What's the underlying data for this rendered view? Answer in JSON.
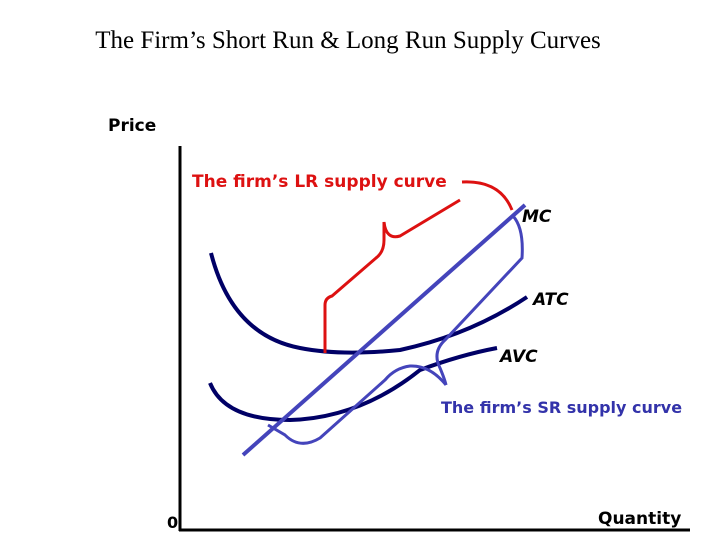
{
  "title": "The Firm’s Short Run & Long Run Supply Curves",
  "axes": {
    "y_label": "Price",
    "x_label": "Quantity",
    "origin": "0"
  },
  "curves": {
    "mc": "MC",
    "atc": "ATC",
    "avc": "AVC"
  },
  "annotations": {
    "lr_supply": "The firm’s LR supply curve",
    "sr_supply": "The firm’s SR supply curve"
  }
}
